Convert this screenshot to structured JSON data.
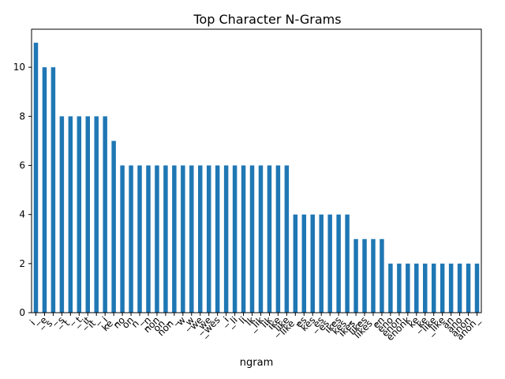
{
  "chart_data": {
    "type": "bar",
    "title": "Top Character N-Grams",
    "xlabel": "ngram",
    "ylabel": "",
    "ylim": [
      0,
      11.55
    ],
    "yticks": [
      0,
      2,
      4,
      6,
      8,
      10
    ],
    "grid": false,
    "legend": "none",
    "bar_color": "#1f77b4",
    "categories": [
      "i_",
      "_e",
      "s_",
      "_s",
      "t_",
      "_t",
      "_it",
      "it_",
      "_i",
      "ke_",
      "no",
      "on",
      "n_",
      "_n",
      "non",
      "on_",
      "non_",
      "w",
      "_w",
      "we",
      "_we",
      "_wes",
      "_i",
      "_li",
      "li",
      "lk",
      "_lik",
      "lik",
      "ike",
      "_like",
      "like_",
      "es",
      "kes",
      "_es",
      "es_",
      "ikes",
      "kes_",
      "ikes_",
      "likes",
      "likes_",
      "en",
      "eno",
      "enon",
      "enonk",
      "ke",
      "_ke",
      "like",
      "_like",
      "an",
      "ano",
      "anon",
      "anon_"
    ],
    "values": [
      11,
      10,
      10,
      8,
      8,
      8,
      8,
      8,
      8,
      7,
      6,
      6,
      6,
      6,
      6,
      6,
      6,
      6,
      6,
      6,
      6,
      6,
      6,
      6,
      6,
      6,
      6,
      6,
      6,
      6,
      4,
      4,
      4,
      4,
      4,
      4,
      4,
      3,
      3,
      3,
      3,
      2,
      2,
      2,
      2,
      2,
      2,
      2,
      2,
      2,
      2,
      2
    ]
  }
}
